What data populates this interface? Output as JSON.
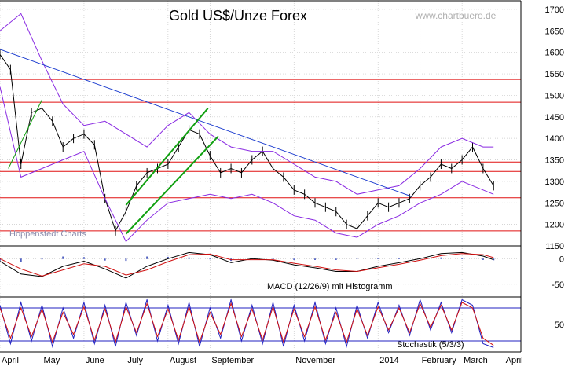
{
  "chart_data": [
    {
      "type": "line",
      "panel": "price",
      "title": "Gold US$/Unze Forex",
      "watermark": "www.chartbuero.de",
      "source_note": "Hoppenstedt Charts",
      "ylim": [
        1150,
        1720
      ],
      "yticks": [
        1150,
        1200,
        1250,
        1300,
        1350,
        1400,
        1450,
        1500,
        1550,
        1600,
        1650,
        1700
      ],
      "x_months": [
        "April",
        "May",
        "June",
        "July",
        "August",
        "September",
        "November",
        "2014",
        "February",
        "March",
        "April"
      ],
      "x_month_positions": [
        0,
        1,
        2,
        3,
        4,
        5,
        7,
        9,
        10,
        11,
        12
      ],
      "x_range": [
        0,
        12.4
      ],
      "horizontal_levels": [
        1537,
        1484,
        1345,
        1323,
        1308,
        1262,
        1185
      ],
      "series": [
        {
          "role": "close",
          "x": [
            0,
            0.25,
            0.5,
            0.75,
            1,
            1.25,
            1.5,
            1.75,
            2,
            2.25,
            2.5,
            2.75,
            3,
            3.25,
            3.5,
            3.75,
            4,
            4.25,
            4.5,
            4.75,
            5,
            5.25,
            5.5,
            5.75,
            6,
            6.25,
            6.5,
            6.75,
            7,
            7.25,
            7.5,
            7.75,
            8,
            8.25,
            8.5,
            8.75,
            9,
            9.25,
            9.5,
            9.75,
            10,
            10.25,
            10.5,
            10.75,
            11,
            11.25,
            11.5,
            11.75
          ],
          "values": [
            1595,
            1560,
            1340,
            1460,
            1470,
            1440,
            1380,
            1400,
            1410,
            1385,
            1260,
            1185,
            1230,
            1290,
            1320,
            1330,
            1340,
            1380,
            1420,
            1410,
            1360,
            1320,
            1330,
            1320,
            1350,
            1370,
            1330,
            1310,
            1280,
            1270,
            1250,
            1240,
            1230,
            1200,
            1190,
            1220,
            1250,
            1240,
            1250,
            1260,
            1290,
            1310,
            1340,
            1330,
            1350,
            1380,
            1330,
            1290
          ]
        },
        {
          "role": "bollinger-upper",
          "x": [
            0,
            0.5,
            1,
            1.5,
            2,
            2.5,
            3,
            3.5,
            4,
            4.5,
            5,
            5.5,
            6,
            6.5,
            7,
            7.5,
            8,
            8.5,
            9,
            9.5,
            10,
            10.5,
            11,
            11.5,
            11.75
          ],
          "values": [
            1650,
            1690,
            1580,
            1480,
            1430,
            1440,
            1410,
            1380,
            1430,
            1460,
            1410,
            1380,
            1370,
            1370,
            1340,
            1310,
            1300,
            1270,
            1280,
            1290,
            1330,
            1380,
            1400,
            1380,
            1380
          ]
        },
        {
          "role": "bollinger-lower",
          "x": [
            0,
            0.5,
            1,
            1.5,
            2,
            2.5,
            3,
            3.5,
            4,
            4.5,
            5,
            5.5,
            6,
            6.5,
            7,
            7.5,
            8,
            8.5,
            9,
            9.5,
            10,
            10.5,
            11,
            11.5,
            11.75
          ],
          "values": [
            1520,
            1310,
            1330,
            1350,
            1370,
            1260,
            1160,
            1210,
            1250,
            1260,
            1270,
            1260,
            1270,
            1250,
            1220,
            1210,
            1180,
            1170,
            1200,
            1220,
            1250,
            1270,
            1300,
            1280,
            1270
          ]
        },
        {
          "role": "trendline",
          "x": [
            0,
            9.8
          ],
          "values": [
            1607,
            1265
          ]
        },
        {
          "role": "channel-upper",
          "x": [
            3,
            4.95
          ],
          "values": [
            1245,
            1470
          ]
        },
        {
          "role": "channel-lower",
          "x": [
            3,
            5.2
          ],
          "values": [
            1178,
            1405
          ]
        },
        {
          "role": "channel-inner",
          "x": [
            0.2,
            1
          ],
          "values": [
            1330,
            1490
          ]
        }
      ]
    },
    {
      "type": "line",
      "panel": "macd",
      "label": "MACD (12/26/9) mit Histogramm",
      "ylim": [
        -75,
        25
      ],
      "yticks": [
        0,
        -50
      ],
      "series": [
        {
          "role": "macd",
          "x": [
            0,
            0.5,
            1,
            1.5,
            2,
            2.5,
            3,
            3.5,
            4,
            4.5,
            5,
            5.5,
            6,
            6.5,
            7,
            7.5,
            8,
            8.5,
            9,
            9.5,
            10,
            10.5,
            11,
            11.5,
            11.75
          ],
          "values": [
            -5,
            -30,
            -35,
            -15,
            -5,
            -20,
            -38,
            -15,
            0,
            12,
            8,
            -8,
            0,
            -3,
            -12,
            -18,
            -25,
            -25,
            -15,
            -8,
            0,
            10,
            12,
            5,
            -2
          ]
        },
        {
          "role": "signal",
          "x": [
            0,
            0.5,
            1,
            1.5,
            2,
            2.5,
            3,
            3.5,
            4,
            4.5,
            5,
            5.5,
            6,
            6.5,
            7,
            7.5,
            8,
            8.5,
            9,
            9.5,
            10,
            10.5,
            11,
            11.5,
            11.75
          ],
          "values": [
            0,
            -20,
            -34,
            -22,
            -10,
            -15,
            -32,
            -22,
            -6,
            8,
            9,
            -2,
            -2,
            -2,
            -9,
            -15,
            -22,
            -25,
            -18,
            -11,
            -3,
            6,
            10,
            8,
            2
          ]
        }
      ]
    },
    {
      "type": "line",
      "panel": "stochastic",
      "label": "Stochastik (5/3/3)",
      "ylim": [
        0,
        100
      ],
      "yticks": [
        50
      ],
      "reference_lines": [
        80,
        20
      ],
      "series": [
        {
          "role": "%K",
          "x": [
            0,
            0.25,
            0.5,
            0.75,
            1,
            1.25,
            1.5,
            1.75,
            2,
            2.25,
            2.5,
            2.75,
            3,
            3.25,
            3.5,
            3.75,
            4,
            4.25,
            4.5,
            4.75,
            5,
            5.25,
            5.5,
            5.75,
            6,
            6.25,
            6.5,
            6.75,
            7,
            7.25,
            7.5,
            7.75,
            8,
            8.25,
            8.5,
            8.75,
            9,
            9.25,
            9.5,
            9.75,
            10,
            10.25,
            10.5,
            10.75,
            11,
            11.25,
            11.5,
            11.75
          ],
          "values": [
            85,
            15,
            90,
            20,
            85,
            10,
            80,
            25,
            90,
            15,
            85,
            10,
            90,
            30,
            95,
            20,
            85,
            15,
            90,
            10,
            80,
            25,
            95,
            20,
            85,
            15,
            90,
            10,
            85,
            20,
            90,
            15,
            80,
            10,
            85,
            25,
            90,
            35,
            85,
            30,
            95,
            40,
            90,
            35,
            95,
            85,
            15,
            8
          ]
        },
        {
          "role": "%D",
          "x": [
            0,
            0.25,
            0.5,
            0.75,
            1,
            1.25,
            1.5,
            1.75,
            2,
            2.25,
            2.5,
            2.75,
            3,
            3.25,
            3.5,
            3.75,
            4,
            4.25,
            4.5,
            4.75,
            5,
            5.25,
            5.5,
            5.75,
            6,
            6.25,
            6.5,
            6.75,
            7,
            7.25,
            7.5,
            7.75,
            8,
            8.25,
            8.5,
            8.75,
            9,
            9.25,
            9.5,
            9.75,
            10,
            10.25,
            10.5,
            10.75,
            11,
            11.25,
            11.5,
            11.75
          ],
          "values": [
            80,
            25,
            80,
            28,
            78,
            18,
            72,
            32,
            82,
            22,
            78,
            18,
            82,
            35,
            88,
            28,
            78,
            22,
            82,
            18,
            72,
            32,
            88,
            28,
            78,
            22,
            82,
            18,
            78,
            28,
            82,
            22,
            72,
            18,
            78,
            30,
            82,
            40,
            80,
            35,
            88,
            45,
            85,
            40,
            90,
            80,
            25,
            12
          ]
        }
      ]
    }
  ]
}
